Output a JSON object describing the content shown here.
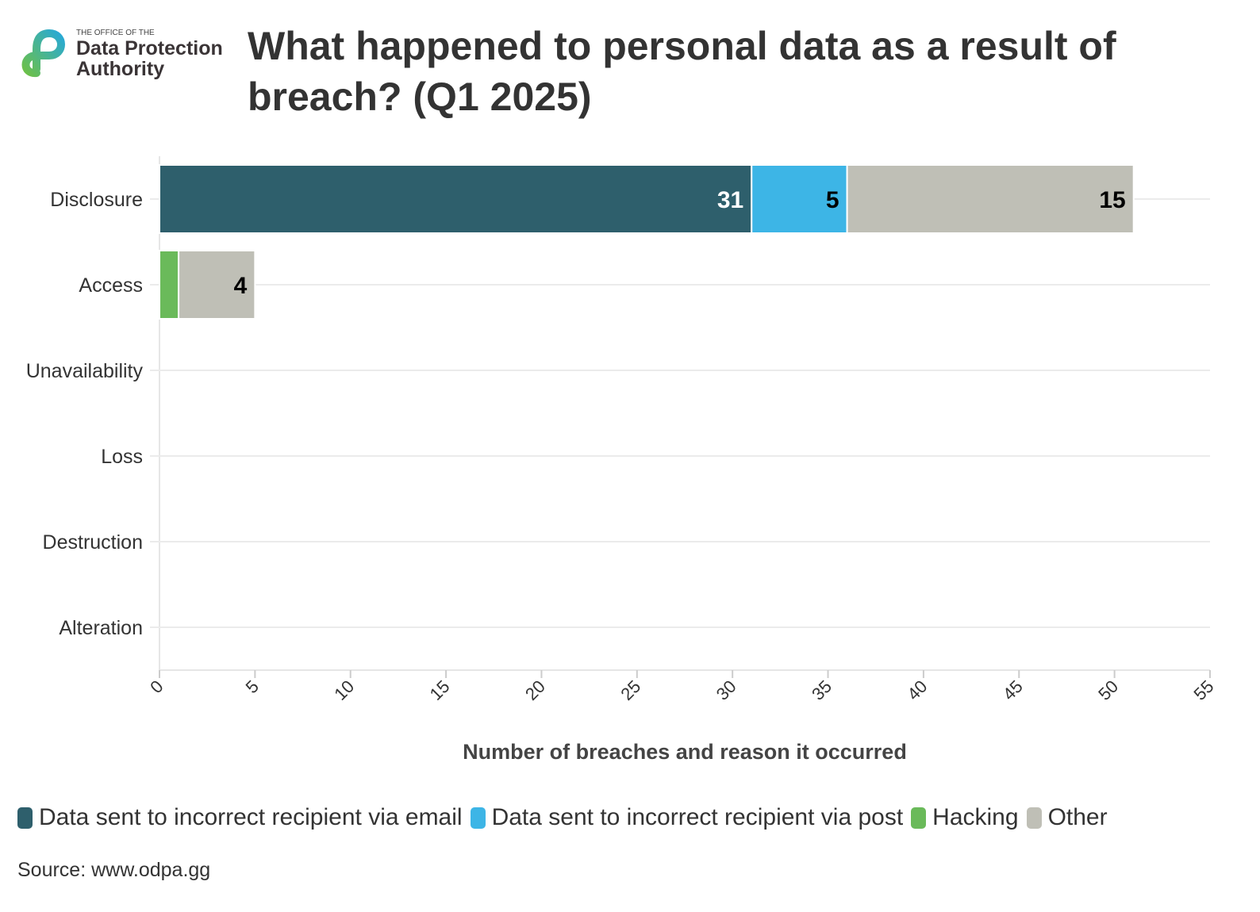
{
  "logo": {
    "line1": "THE OFFICE OF THE",
    "line2": "Data Protection",
    "line3": "Authority"
  },
  "chart_data": {
    "type": "bar",
    "orientation": "horizontal",
    "stacked": true,
    "title": "What happened to personal data as a result of breach? (Q1 2025)",
    "xlabel": "Number of breaches and reason it occurred",
    "ylabel": "",
    "categories": [
      "Disclosure",
      "Access",
      "Unavailability",
      "Loss",
      "Destruction",
      "Alteration"
    ],
    "xlim": [
      0,
      55
    ],
    "xticks": [
      0,
      5,
      10,
      15,
      20,
      25,
      30,
      35,
      40,
      45,
      50,
      55
    ],
    "grid": true,
    "legend_position": "bottom",
    "series": [
      {
        "name": "Data sent to incorrect recipient via email",
        "color": "#2e5f6c",
        "label_color": "#ffffff",
        "values": [
          31,
          0,
          0,
          0,
          0,
          0
        ],
        "show_labels": true
      },
      {
        "name": "Data sent to incorrect recipient via post",
        "color": "#3db5e6",
        "label_color": "#000000",
        "values": [
          5,
          0,
          0,
          0,
          0,
          0
        ],
        "show_labels": true
      },
      {
        "name": "Hacking",
        "color": "#6aba5a",
        "label_color": "#000000",
        "values": [
          0,
          1,
          0,
          0,
          0,
          0
        ],
        "show_labels": false
      },
      {
        "name": "Other",
        "color": "#bfbfb6",
        "label_color": "#000000",
        "values": [
          15,
          4,
          0,
          0,
          0,
          0
        ],
        "show_labels": true
      }
    ]
  },
  "source": "Source: www.odpa.gg"
}
